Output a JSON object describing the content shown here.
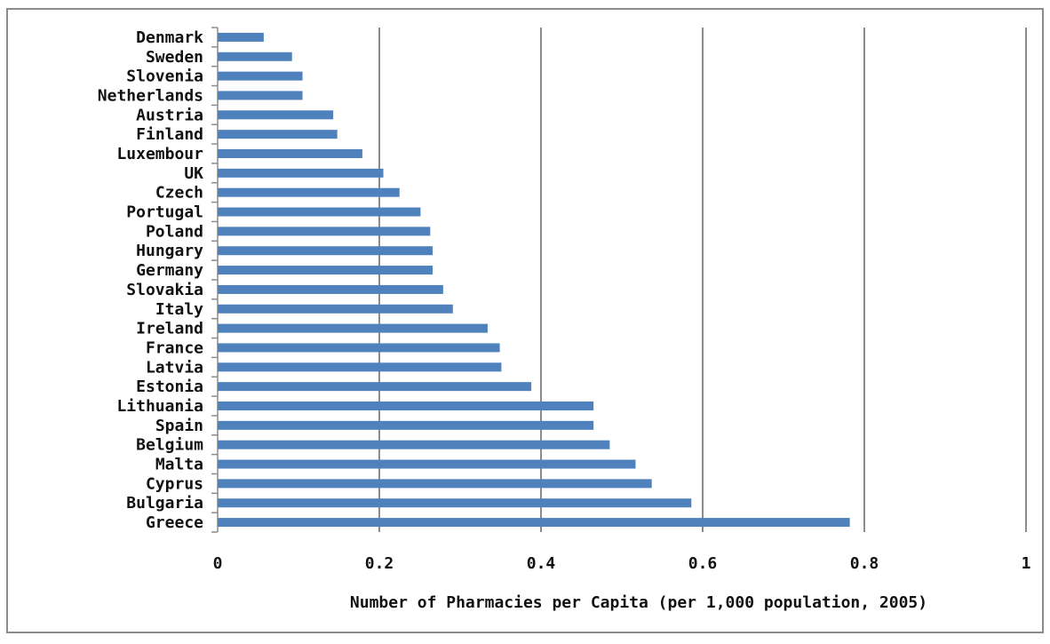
{
  "chart_data": {
    "type": "bar",
    "orientation": "horizontal",
    "categories": [
      "Denmark",
      "Sweden",
      "Slovenia",
      "Netherlands",
      "Austria",
      "Finland",
      "Luxembour",
      "UK",
      "Czech",
      "Portugal",
      "Poland",
      "Hungary",
      "Germany",
      "Slovakia",
      "Italy",
      "Ireland",
      "France",
      "Latvia",
      "Estonia",
      "Lithuania",
      "Spain",
      "Belgium",
      "Malta",
      "Cyprus",
      "Bulgaria",
      "Greece"
    ],
    "values": [
      0.057,
      0.092,
      0.105,
      0.105,
      0.143,
      0.148,
      0.179,
      0.205,
      0.225,
      0.251,
      0.263,
      0.266,
      0.266,
      0.279,
      0.291,
      0.334,
      0.349,
      0.351,
      0.388,
      0.465,
      0.465,
      0.485,
      0.517,
      0.537,
      0.586,
      0.782
    ],
    "xlim": [
      0,
      1
    ],
    "xticks": [
      0,
      0.2,
      0.4,
      0.6,
      0.8,
      1
    ],
    "xtick_labels": [
      "0",
      "0.2",
      "0.4",
      "0.6",
      "0.8",
      "1"
    ],
    "xlabel": "Number of Pharmacies per Capita (per 1,000 population, 2005)",
    "ylabel": "",
    "title": "",
    "grid": "vertical",
    "legend": "none",
    "colors": {
      "bar": "#4f81bd",
      "grid": "#8c8c8c",
      "frame": "#8c8c8c"
    }
  }
}
